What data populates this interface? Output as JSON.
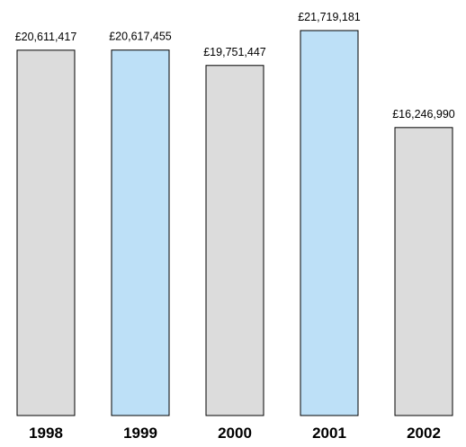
{
  "chart_data": {
    "type": "bar",
    "categories": [
      "1998",
      "1999",
      "2000",
      "2001",
      "2002"
    ],
    "values": [
      20611417,
      20617455,
      19751447,
      21719181,
      16246990
    ],
    "value_labels": [
      "£20,611,417",
      "£20,617,455",
      "£19,751,447",
      "£21,719,181",
      "£16,246,990"
    ],
    "title": "",
    "xlabel": "",
    "ylabel": "",
    "ylim": [
      0,
      21719181
    ],
    "grid": false,
    "legend": "none",
    "colors": [
      "#dcdcdc",
      "#bde0f7",
      "#dcdcdc",
      "#bde0f7",
      "#dcdcdc"
    ],
    "bar_border_color": "#000000"
  }
}
